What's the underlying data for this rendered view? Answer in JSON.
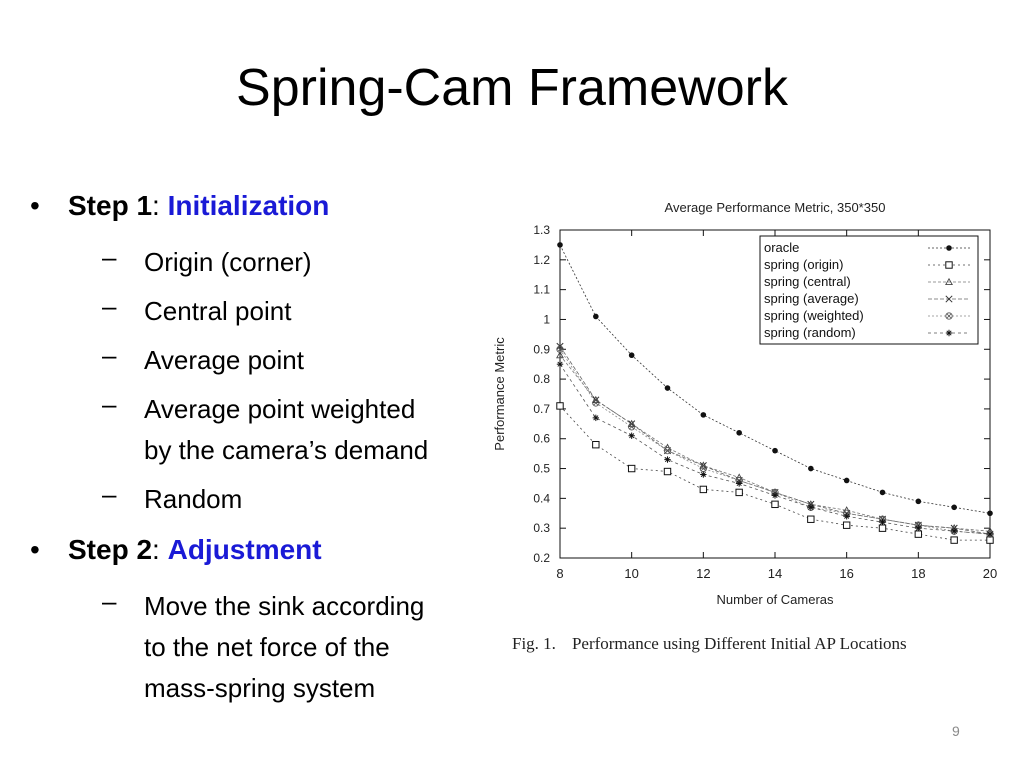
{
  "slide": {
    "title": "Spring-Cam Framework",
    "page_number": "9"
  },
  "bullets": {
    "step1": {
      "bullet": "•",
      "label": "Step 1",
      "sep": ":",
      "value": "Initialization"
    },
    "step1_items": [
      {
        "dash": "–",
        "lines": [
          "Origin (corner)"
        ]
      },
      {
        "dash": "–",
        "lines": [
          "Central point"
        ]
      },
      {
        "dash": "–",
        "lines": [
          "Average point"
        ]
      },
      {
        "dash": "–",
        "lines": [
          "Average point weighted",
          "by the camera’s demand"
        ]
      },
      {
        "dash": "–",
        "lines": [
          "Random"
        ]
      }
    ],
    "step2": {
      "bullet": "•",
      "label": "Step 2",
      "sep": ":",
      "value": "Adjustment"
    },
    "step2_items": [
      {
        "dash": "–",
        "lines": [
          "Move the sink according",
          "to the net force of the",
          "mass-spring system"
        ]
      }
    ],
    "accent_color": "#1a1ad6"
  },
  "figure": {
    "caption_label": "Fig. 1.",
    "caption_text": "Performance using Different Initial AP Locations"
  },
  "chart_data": {
    "type": "line",
    "title": "Average Performance Metric, 350*350",
    "xlabel": "Number of Cameras",
    "ylabel": "Performance Metric",
    "xlim": [
      8,
      20
    ],
    "ylim": [
      0.2,
      1.3
    ],
    "x_ticks": [
      "8",
      "10",
      "12",
      "14",
      "16",
      "18",
      "20"
    ],
    "y_ticks": [
      "0.2",
      "0.3",
      "0.4",
      "0.5",
      "0.6",
      "0.7",
      "0.8",
      "0.9",
      "1",
      "1.1",
      "1.2",
      "1.3"
    ],
    "legend_position": "top-right",
    "grid": false,
    "x": [
      8,
      9,
      10,
      11,
      12,
      13,
      14,
      15,
      16,
      17,
      18,
      19,
      20
    ],
    "series": [
      {
        "name": "oracle",
        "marker": "filled-circle",
        "values": [
          1.25,
          1.01,
          0.88,
          0.77,
          0.68,
          0.62,
          0.56,
          0.5,
          0.46,
          0.42,
          0.39,
          0.37,
          0.35
        ]
      },
      {
        "name": "spring (origin)",
        "marker": "square",
        "values": [
          0.71,
          0.58,
          0.5,
          0.49,
          0.43,
          0.42,
          0.38,
          0.33,
          0.31,
          0.3,
          0.28,
          0.26,
          0.26
        ]
      },
      {
        "name": "spring (central)",
        "marker": "triangle",
        "values": [
          0.88,
          0.73,
          0.65,
          0.57,
          0.51,
          0.47,
          0.42,
          0.38,
          0.36,
          0.33,
          0.31,
          0.3,
          0.29
        ]
      },
      {
        "name": "spring (average)",
        "marker": "x",
        "values": [
          0.91,
          0.73,
          0.65,
          0.56,
          0.51,
          0.46,
          0.42,
          0.38,
          0.35,
          0.33,
          0.31,
          0.3,
          0.28
        ]
      },
      {
        "name": "spring (weighted)",
        "marker": "circle-cross",
        "values": [
          0.9,
          0.72,
          0.64,
          0.56,
          0.5,
          0.46,
          0.42,
          0.37,
          0.35,
          0.33,
          0.31,
          0.29,
          0.28
        ]
      },
      {
        "name": "spring (random)",
        "marker": "star",
        "values": [
          0.85,
          0.67,
          0.61,
          0.53,
          0.48,
          0.45,
          0.41,
          0.37,
          0.34,
          0.32,
          0.3,
          0.29,
          0.28
        ]
      }
    ]
  }
}
